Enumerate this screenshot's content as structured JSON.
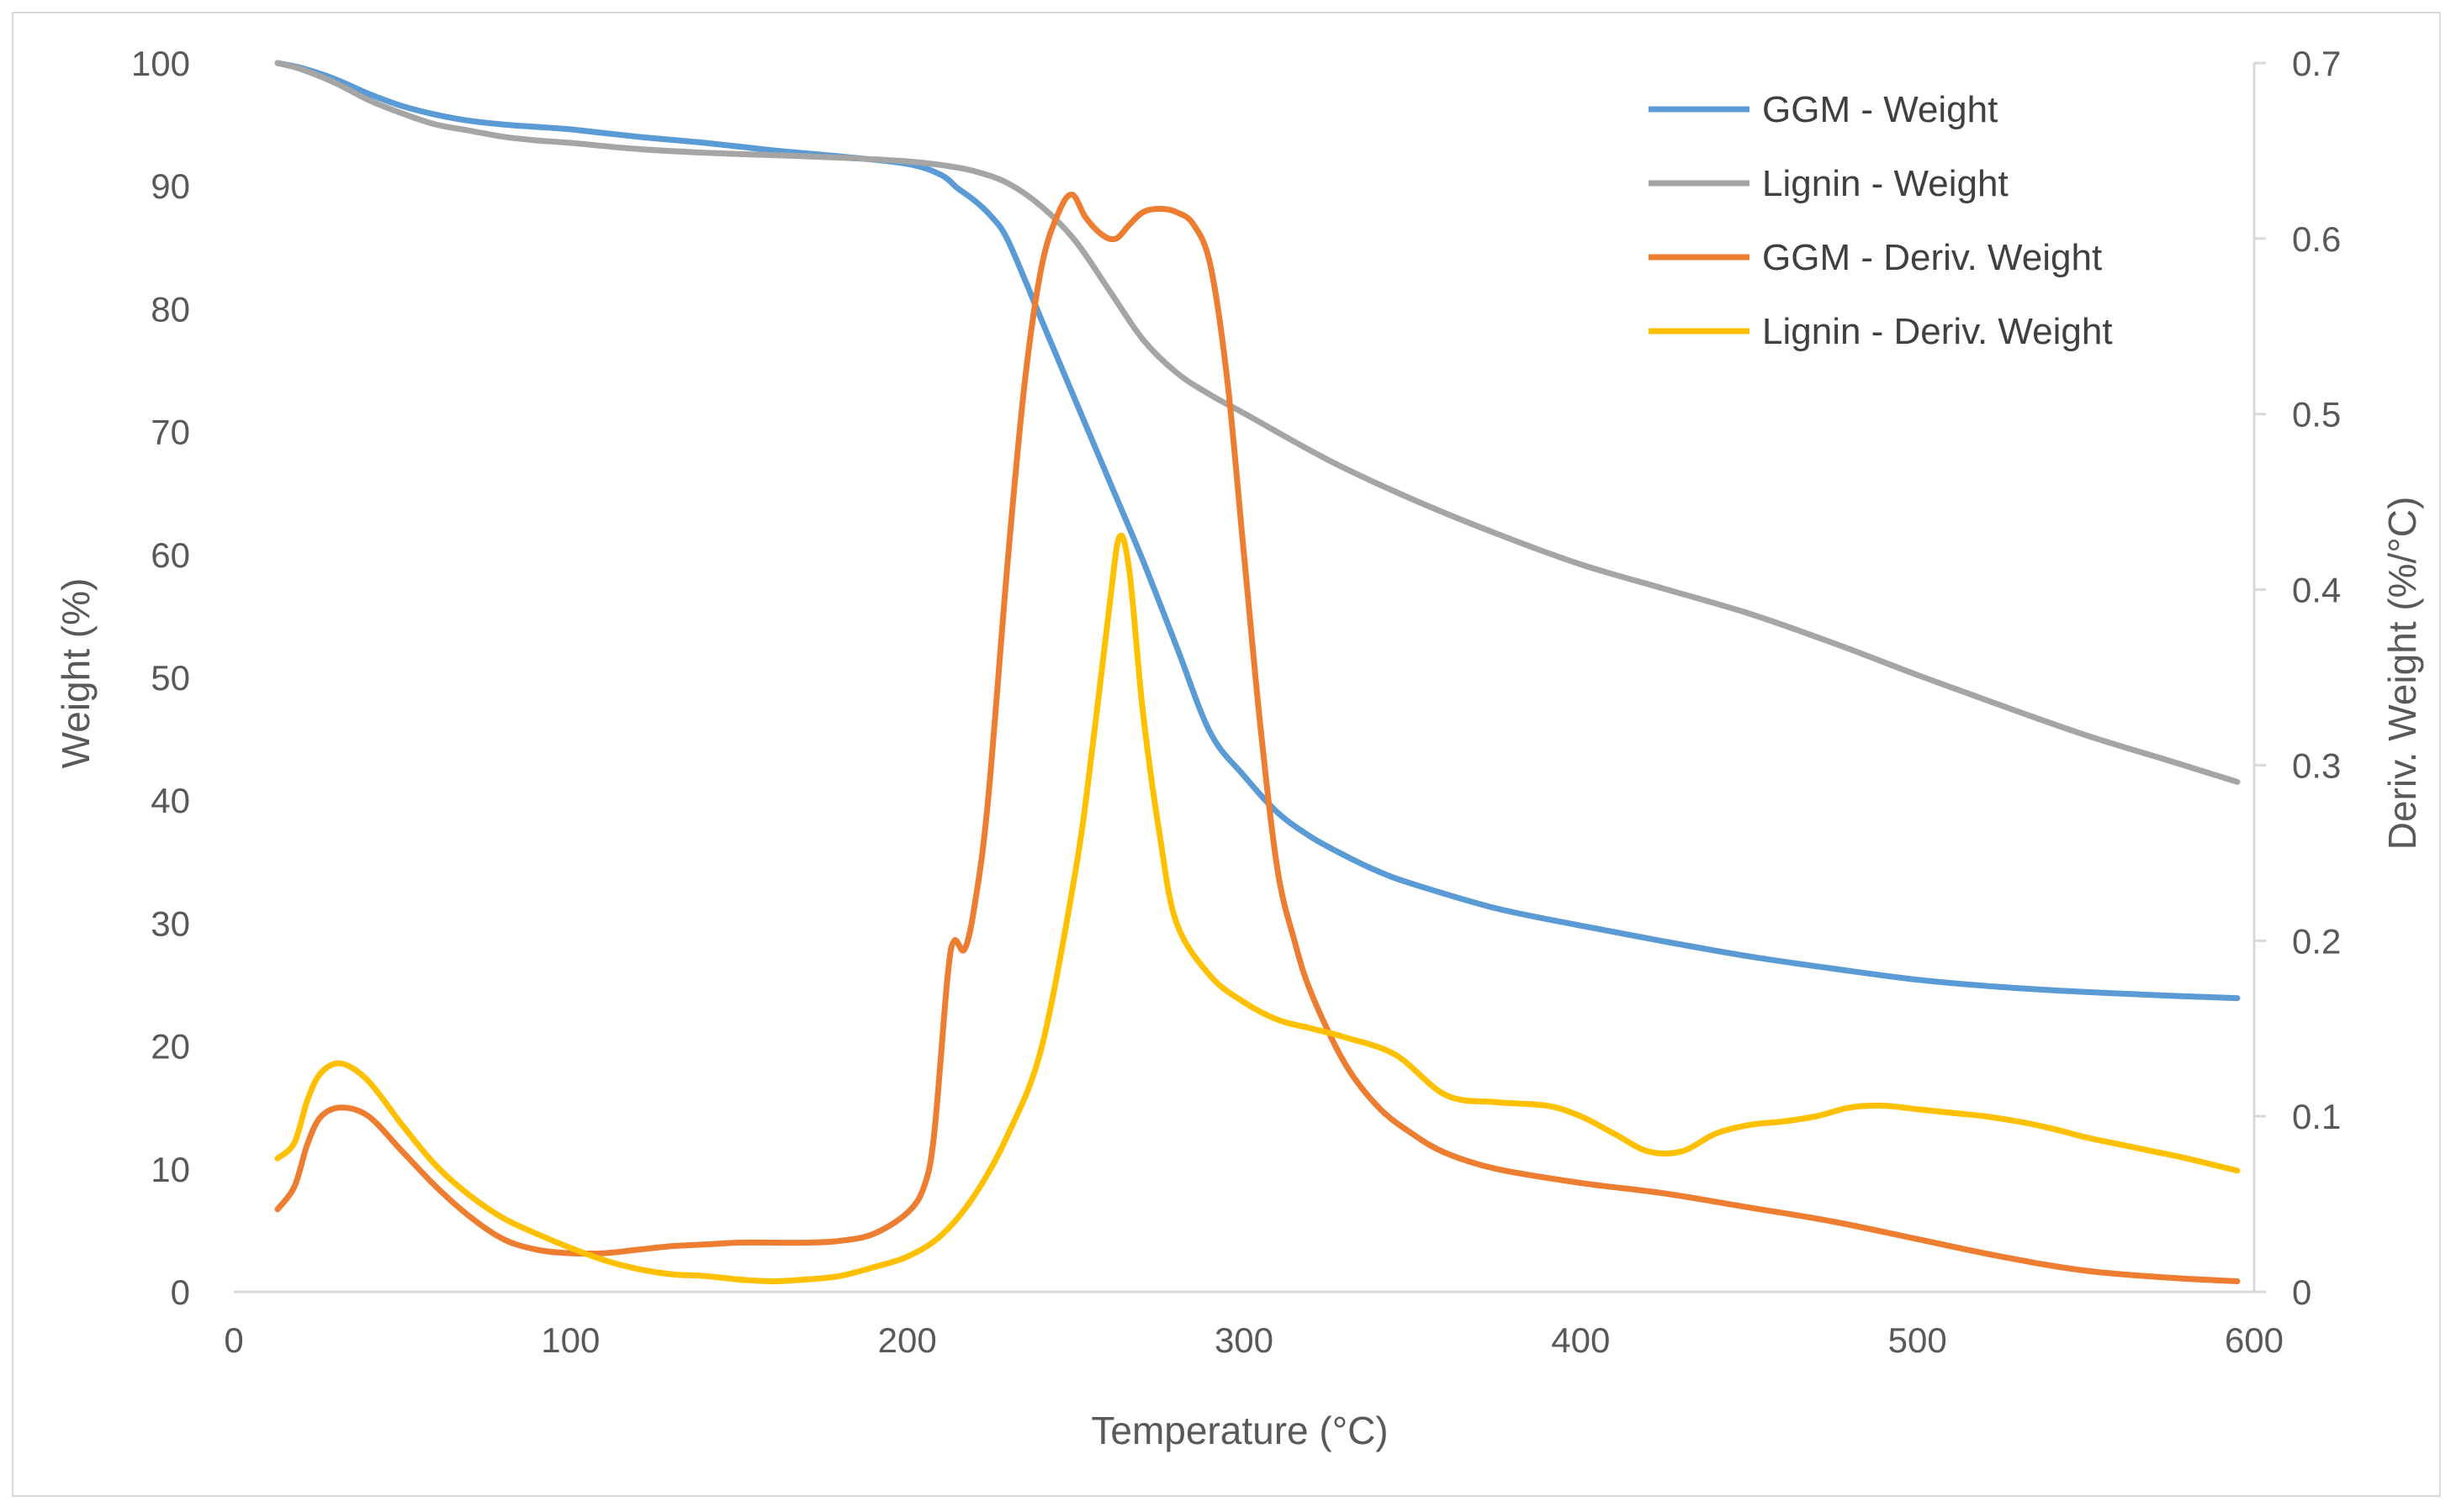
{
  "chart_data": {
    "type": "line",
    "title": "",
    "xlabel": "Temperature (°C)",
    "ylabel": "Weight (%)",
    "y2label": "Deriv. Weight (%/°C)",
    "xlim": [
      0,
      600
    ],
    "ylim": [
      0,
      100
    ],
    "y2lim": [
      0,
      0.7
    ],
    "xticks": [
      "0",
      "100",
      "200",
      "300",
      "400",
      "500",
      "600"
    ],
    "yticks": [
      "0",
      "10",
      "20",
      "30",
      "40",
      "50",
      "60",
      "70",
      "80",
      "90",
      "100"
    ],
    "y2ticks": [
      "0",
      "0.1",
      "0.2",
      "0.3",
      "0.4",
      "0.5",
      "0.6",
      "0.7"
    ],
    "legend_position": "top-right",
    "series": [
      {
        "name": "GGM - Weight",
        "axis": "left",
        "color": "#5b9bd5",
        "x": [
          13,
          20,
          30,
          40,
          50,
          60,
          70,
          80,
          90,
          100,
          120,
          140,
          160,
          180,
          200,
          210,
          215,
          220,
          225,
          230,
          240,
          250,
          260,
          270,
          280,
          290,
          300,
          310,
          320,
          330,
          340,
          350,
          375,
          400,
          425,
          450,
          475,
          500,
          525,
          550,
          575,
          595
        ],
        "y": [
          100,
          99.6,
          98.7,
          97.5,
          96.5,
          95.8,
          95.3,
          95.0,
          94.8,
          94.6,
          94.0,
          93.5,
          92.9,
          92.4,
          91.8,
          90.9,
          89.8,
          88.8,
          87.5,
          85.5,
          79.0,
          72.5,
          66.0,
          59.5,
          52.5,
          45.5,
          42.0,
          39.0,
          37.0,
          35.5,
          34.2,
          33.2,
          31.2,
          29.8,
          28.5,
          27.3,
          26.3,
          25.4,
          24.8,
          24.4,
          24.1,
          23.9
        ]
      },
      {
        "name": "Lignin - Weight",
        "axis": "left",
        "color": "#a5a5a5",
        "x": [
          13,
          20,
          30,
          40,
          50,
          60,
          70,
          80,
          90,
          100,
          120,
          140,
          160,
          180,
          200,
          210,
          220,
          230,
          240,
          250,
          260,
          270,
          280,
          290,
          300,
          325,
          350,
          375,
          400,
          425,
          450,
          475,
          500,
          525,
          550,
          575,
          595
        ],
        "y": [
          100,
          99.5,
          98.4,
          97.0,
          95.9,
          95.0,
          94.5,
          94.0,
          93.7,
          93.5,
          93.0,
          92.7,
          92.5,
          92.3,
          92.0,
          91.7,
          91.2,
          90.2,
          88.3,
          85.5,
          81.5,
          77.5,
          74.8,
          73.0,
          71.5,
          67.7,
          64.5,
          61.7,
          59.2,
          57.2,
          55.2,
          52.8,
          50.2,
          47.7,
          45.3,
          43.2,
          41.5
        ]
      },
      {
        "name": "GGM - Deriv. Weight",
        "axis": "right",
        "color": "#ed7d31",
        "x": [
          13,
          18,
          22,
          26,
          32,
          40,
          50,
          60,
          70,
          80,
          90,
          100,
          110,
          120,
          130,
          140,
          150,
          160,
          170,
          180,
          190,
          200,
          205,
          208,
          212,
          214,
          217,
          220,
          224,
          230,
          235,
          240,
          245,
          249,
          253,
          258,
          262,
          266,
          270,
          275,
          280,
          285,
          290,
          295,
          300,
          305,
          310,
          315,
          320,
          330,
          340,
          350,
          360,
          375,
          400,
          425,
          450,
          475,
          500,
          525,
          550,
          575,
          595
        ],
        "y": [
          0.047,
          0.06,
          0.085,
          0.1,
          0.105,
          0.1,
          0.08,
          0.06,
          0.043,
          0.03,
          0.024,
          0.022,
          0.022,
          0.024,
          0.026,
          0.027,
          0.028,
          0.028,
          0.028,
          0.029,
          0.033,
          0.045,
          0.06,
          0.09,
          0.18,
          0.2,
          0.195,
          0.22,
          0.28,
          0.42,
          0.52,
          0.585,
          0.615,
          0.625,
          0.612,
          0.602,
          0.6,
          0.608,
          0.615,
          0.617,
          0.615,
          0.608,
          0.585,
          0.52,
          0.42,
          0.32,
          0.24,
          0.2,
          0.17,
          0.13,
          0.105,
          0.09,
          0.079,
          0.07,
          0.062,
          0.056,
          0.048,
          0.04,
          0.03,
          0.02,
          0.012,
          0.008,
          0.006
        ]
      },
      {
        "name": "Lignin - Deriv. Weight",
        "axis": "right",
        "color": "#ffc000",
        "x": [
          13,
          18,
          22,
          26,
          32,
          40,
          50,
          60,
          70,
          80,
          90,
          100,
          110,
          120,
          130,
          140,
          150,
          160,
          170,
          180,
          190,
          200,
          210,
          220,
          230,
          240,
          250,
          255,
          260,
          263,
          266,
          270,
          275,
          280,
          290,
          300,
          310,
          320,
          330,
          345,
          360,
          375,
          390,
          400,
          410,
          420,
          430,
          440,
          450,
          460,
          470,
          480,
          490,
          500,
          510,
          520,
          530,
          540,
          550,
          560,
          570,
          580,
          595
        ],
        "y": [
          0.076,
          0.085,
          0.11,
          0.125,
          0.13,
          0.12,
          0.095,
          0.072,
          0.055,
          0.042,
          0.033,
          0.025,
          0.018,
          0.013,
          0.01,
          0.009,
          0.007,
          0.006,
          0.007,
          0.009,
          0.014,
          0.02,
          0.032,
          0.055,
          0.09,
          0.14,
          0.24,
          0.31,
          0.39,
          0.43,
          0.41,
          0.33,
          0.26,
          0.21,
          0.18,
          0.165,
          0.155,
          0.15,
          0.145,
          0.135,
          0.112,
          0.108,
          0.106,
          0.1,
          0.09,
          0.08,
          0.08,
          0.09,
          0.095,
          0.097,
          0.1,
          0.105,
          0.106,
          0.104,
          0.102,
          0.1,
          0.097,
          0.093,
          0.088,
          0.084,
          0.08,
          0.076,
          0.069
        ]
      }
    ]
  }
}
